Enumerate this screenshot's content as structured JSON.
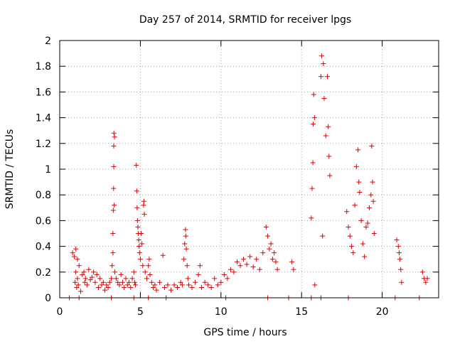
{
  "chart_data": {
    "type": "scatter",
    "title": "Day 257 of 2014, SRMTID for receiver lpgs",
    "xlabel": "GPS time / hours",
    "ylabel": "SRMTID / TECUs",
    "xlim": [
      0,
      23.5
    ],
    "ylim": [
      0,
      2
    ],
    "xticks": [
      0,
      5,
      10,
      15,
      20
    ],
    "yticks": [
      0,
      0.2,
      0.4,
      0.6,
      0.8,
      1,
      1.2,
      1.4,
      1.6,
      1.8,
      2
    ],
    "xtick_labels": [
      "0",
      "5",
      "10",
      "15",
      "20"
    ],
    "ytick_labels": [
      "0",
      "0.2",
      "0.4",
      "0.6",
      "0.8",
      "1",
      "1.2",
      "1.4",
      "1.6",
      "1.8",
      "2"
    ],
    "grid": true,
    "marker": "+",
    "color": "#dd0000",
    "series": [
      {
        "name": "SRMTID",
        "points": [
          [
            0.8,
            0.35
          ],
          [
            0.9,
            0.32
          ],
          [
            0.95,
            0.12
          ],
          [
            1.0,
            0.2
          ],
          [
            1.0,
            0.38
          ],
          [
            1.05,
            0.08
          ],
          [
            1.1,
            0.15
          ],
          [
            1.1,
            0.3
          ],
          [
            1.15,
            0.1
          ],
          [
            1.2,
            0.25
          ],
          [
            1.3,
            0.05
          ],
          [
            1.4,
            0.18
          ],
          [
            1.5,
            0.2
          ],
          [
            1.55,
            0.12
          ],
          [
            1.6,
            0.15
          ],
          [
            1.7,
            0.1
          ],
          [
            1.8,
            0.22
          ],
          [
            1.9,
            0.14
          ],
          [
            2.0,
            0.16
          ],
          [
            2.1,
            0.2
          ],
          [
            2.2,
            0.12
          ],
          [
            2.3,
            0.18
          ],
          [
            2.4,
            0.08
          ],
          [
            2.5,
            0.15
          ],
          [
            2.6,
            0.1
          ],
          [
            2.7,
            0.12
          ],
          [
            2.8,
            0.06
          ],
          [
            2.9,
            0.1
          ],
          [
            3.0,
            0.08
          ],
          [
            3.1,
            0.12
          ],
          [
            3.2,
            0.15
          ],
          [
            3.25,
            0.25
          ],
          [
            3.3,
            0.35
          ],
          [
            3.3,
            0.5
          ],
          [
            3.32,
            0.68
          ],
          [
            3.34,
            0.85
          ],
          [
            3.35,
            1.02
          ],
          [
            3.35,
            1.18
          ],
          [
            3.36,
            1.28
          ],
          [
            3.38,
            0.72
          ],
          [
            3.4,
            1.25
          ],
          [
            3.42,
            0.2
          ],
          [
            3.5,
            0.15
          ],
          [
            3.6,
            0.12
          ],
          [
            3.7,
            0.1
          ],
          [
            3.8,
            0.18
          ],
          [
            3.9,
            0.12
          ],
          [
            4.0,
            0.08
          ],
          [
            4.1,
            0.15
          ],
          [
            4.2,
            0.1
          ],
          [
            4.3,
            0.12
          ],
          [
            4.4,
            0.08
          ],
          [
            4.5,
            0.15
          ],
          [
            4.6,
            0.2
          ],
          [
            4.65,
            0.12
          ],
          [
            4.7,
            0.1
          ],
          [
            4.75,
            1.03
          ],
          [
            4.78,
            0.83
          ],
          [
            4.8,
            0.7
          ],
          [
            4.82,
            0.6
          ],
          [
            4.85,
            0.55
          ],
          [
            4.88,
            0.5
          ],
          [
            4.9,
            0.45
          ],
          [
            4.92,
            0.4
          ],
          [
            4.95,
            0.35
          ],
          [
            5.0,
            0.3
          ],
          [
            5.05,
            0.5
          ],
          [
            5.1,
            0.42
          ],
          [
            5.15,
            0.25
          ],
          [
            5.2,
            0.72
          ],
          [
            5.22,
            0.75
          ],
          [
            5.25,
            0.65
          ],
          [
            5.3,
            0.2
          ],
          [
            5.4,
            0.15
          ],
          [
            5.5,
            0.25
          ],
          [
            5.55,
            0.3
          ],
          [
            5.6,
            0.18
          ],
          [
            5.7,
            0.12
          ],
          [
            5.8,
            0.08
          ],
          [
            5.9,
            0.1
          ],
          [
            6.0,
            0.06
          ],
          [
            6.2,
            0.12
          ],
          [
            6.4,
            0.33
          ],
          [
            6.5,
            0.08
          ],
          [
            6.7,
            0.1
          ],
          [
            6.9,
            0.06
          ],
          [
            7.1,
            0.1
          ],
          [
            7.3,
            0.08
          ],
          [
            7.5,
            0.12
          ],
          [
            7.6,
            0.1
          ],
          [
            7.7,
            0.3
          ],
          [
            7.75,
            0.42
          ],
          [
            7.8,
            0.53
          ],
          [
            7.82,
            0.48
          ],
          [
            7.85,
            0.38
          ],
          [
            7.9,
            0.25
          ],
          [
            7.95,
            0.15
          ],
          [
            8.0,
            0.1
          ],
          [
            8.2,
            0.08
          ],
          [
            8.4,
            0.12
          ],
          [
            8.6,
            0.18
          ],
          [
            8.7,
            0.25
          ],
          [
            8.8,
            0.08
          ],
          [
            9.0,
            0.12
          ],
          [
            9.2,
            0.1
          ],
          [
            9.4,
            0.08
          ],
          [
            9.6,
            0.15
          ],
          [
            9.8,
            0.1
          ],
          [
            10.0,
            0.12
          ],
          [
            10.2,
            0.18
          ],
          [
            10.4,
            0.15
          ],
          [
            10.6,
            0.22
          ],
          [
            10.8,
            0.2
          ],
          [
            11.0,
            0.28
          ],
          [
            11.2,
            0.25
          ],
          [
            11.4,
            0.3
          ],
          [
            11.6,
            0.26
          ],
          [
            11.8,
            0.32
          ],
          [
            12.0,
            0.24
          ],
          [
            12.2,
            0.3
          ],
          [
            12.4,
            0.22
          ],
          [
            12.6,
            0.35
          ],
          [
            12.8,
            0.55
          ],
          [
            12.9,
            0.48
          ],
          [
            13.0,
            0.38
          ],
          [
            13.1,
            0.42
          ],
          [
            13.2,
            0.3
          ],
          [
            13.3,
            0.35
          ],
          [
            13.4,
            0.28
          ],
          [
            13.5,
            0.22
          ],
          [
            14.4,
            0.28
          ],
          [
            14.5,
            0.22
          ],
          [
            15.6,
            0.62
          ],
          [
            15.65,
            0.85
          ],
          [
            15.7,
            1.05
          ],
          [
            15.72,
            1.35
          ],
          [
            15.75,
            1.58
          ],
          [
            15.8,
            1.4
          ],
          [
            15.82,
            0.1
          ],
          [
            16.2,
            1.72
          ],
          [
            16.25,
            1.88
          ],
          [
            16.3,
            0.48
          ],
          [
            16.35,
            1.82
          ],
          [
            16.4,
            1.55
          ],
          [
            16.5,
            1.26
          ],
          [
            16.6,
            1.72
          ],
          [
            16.65,
            1.33
          ],
          [
            16.7,
            1.1
          ],
          [
            16.75,
            0.95
          ],
          [
            17.8,
            0.67
          ],
          [
            17.9,
            0.55
          ],
          [
            18.0,
            0.48
          ],
          [
            18.1,
            0.4
          ],
          [
            18.2,
            0.35
          ],
          [
            18.3,
            0.72
          ],
          [
            18.4,
            1.02
          ],
          [
            18.5,
            1.15
          ],
          [
            18.55,
            0.9
          ],
          [
            18.6,
            0.82
          ],
          [
            18.7,
            0.6
          ],
          [
            18.8,
            0.42
          ],
          [
            18.9,
            0.32
          ],
          [
            19.0,
            0.55
          ],
          [
            19.1,
            0.58
          ],
          [
            19.2,
            0.7
          ],
          [
            19.3,
            0.8
          ],
          [
            19.35,
            1.18
          ],
          [
            19.4,
            0.9
          ],
          [
            19.45,
            0.75
          ],
          [
            19.5,
            0.5
          ],
          [
            20.9,
            0.45
          ],
          [
            21.0,
            0.4
          ],
          [
            21.05,
            0.35
          ],
          [
            21.1,
            0.3
          ],
          [
            21.15,
            0.22
          ],
          [
            21.2,
            0.12
          ],
          [
            22.5,
            0.2
          ],
          [
            22.6,
            0.15
          ],
          [
            22.7,
            0.12
          ],
          [
            22.8,
            0.15
          ]
        ]
      }
    ],
    "zero_points_x": [
      0.6,
      1.2,
      3.2,
      4.6,
      5.5,
      6.6,
      10.3,
      12.9,
      14.2,
      15.6,
      16.2,
      17.9,
      20.8,
      22.3
    ]
  }
}
